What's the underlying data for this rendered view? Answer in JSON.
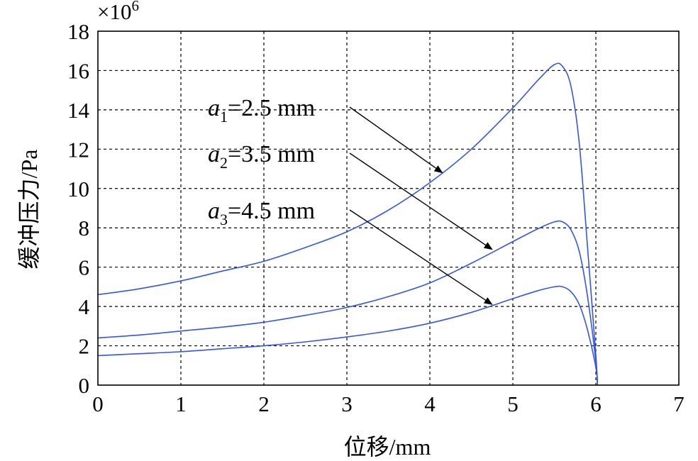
{
  "chart_data": {
    "type": "line",
    "xlabel": "位移/mm",
    "ylabel": "缓冲压力/Pa",
    "y_multiplier": "×10",
    "y_multiplier_exp": "6",
    "xlim": [
      0,
      7
    ],
    "ylim": [
      0,
      18
    ],
    "x_ticks": [
      "0",
      "1",
      "2",
      "3",
      "4",
      "5",
      "6",
      "7"
    ],
    "y_ticks": [
      "0",
      "2",
      "4",
      "6",
      "8",
      "10",
      "12",
      "14",
      "16",
      "18"
    ],
    "grid": true,
    "series": [
      {
        "color": "#3355ee",
        "x": [
          0,
          0.5,
          1,
          1.5,
          2,
          2.5,
          3,
          3.5,
          4,
          4.5,
          5,
          5.3,
          5.5,
          5.6,
          5.7,
          5.8,
          5.9,
          6.0,
          6.02
        ],
        "y": [
          4.6,
          4.9,
          5.3,
          5.8,
          6.3,
          7.0,
          7.8,
          8.9,
          10.3,
          12.0,
          14.1,
          15.5,
          16.3,
          16.2,
          15.2,
          12.3,
          7.0,
          1.5,
          0
        ]
      },
      {
        "color": "#3355ee",
        "x": [
          0,
          0.5,
          1,
          1.5,
          2,
          2.5,
          3,
          3.5,
          4,
          4.5,
          5,
          5.3,
          5.5,
          5.6,
          5.7,
          5.8,
          5.9,
          6.0,
          6.02
        ],
        "y": [
          2.4,
          2.55,
          2.75,
          2.95,
          3.2,
          3.55,
          3.95,
          4.5,
          5.2,
          6.2,
          7.3,
          7.95,
          8.3,
          8.3,
          7.9,
          6.8,
          4.5,
          1.2,
          0
        ]
      },
      {
        "color": "#3355ee",
        "x": [
          0,
          0.5,
          1,
          1.5,
          2,
          2.5,
          3,
          3.5,
          4,
          4.5,
          5,
          5.3,
          5.5,
          5.6,
          5.7,
          5.8,
          5.9,
          6.0,
          6.02
        ],
        "y": [
          1.5,
          1.6,
          1.7,
          1.85,
          2.0,
          2.2,
          2.45,
          2.75,
          3.15,
          3.7,
          4.4,
          4.8,
          5.0,
          5.0,
          4.75,
          4.1,
          2.8,
          0.9,
          0
        ]
      }
    ],
    "annotations": [
      {
        "var": "a",
        "sub": "1",
        "text": "=2.5 mm",
        "arrow_to": [
          4.15,
          10.8
        ]
      },
      {
        "var": "a",
        "sub": "2",
        "text": "=3.5 mm",
        "arrow_to": [
          4.75,
          6.9
        ]
      },
      {
        "var": "a",
        "sub": "3",
        "text": "=4.5 mm",
        "arrow_to": [
          4.75,
          4.1
        ]
      }
    ]
  }
}
